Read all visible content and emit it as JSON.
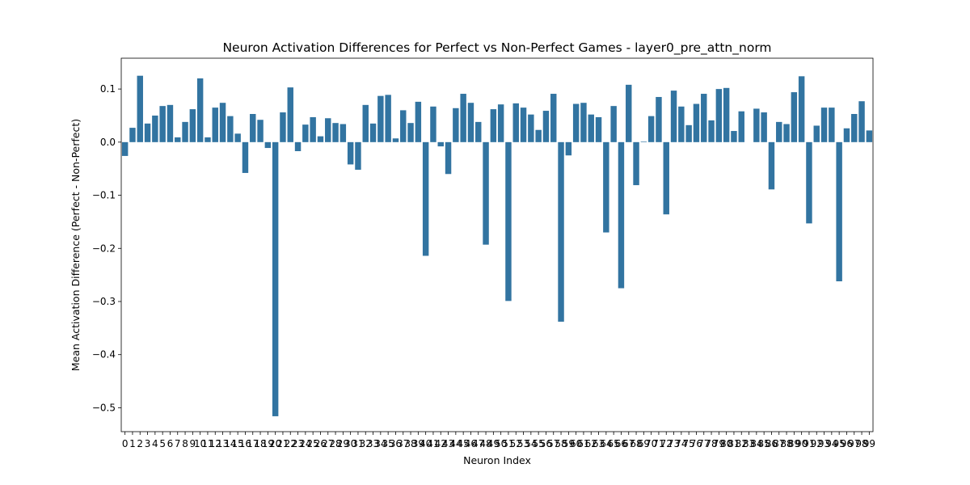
{
  "chart_data": {
    "type": "bar",
    "title": "Neuron Activation Differences for Perfect vs Non-Perfect Games - layer0_pre_attn_norm",
    "xlabel": "Neuron Index",
    "ylabel": "Mean Activation Difference (Perfect - Non-Perfect)",
    "ylim": [
      -0.545,
      0.158
    ],
    "yticks": [
      0.1,
      0.0,
      -0.1,
      -0.2,
      -0.3,
      -0.4,
      -0.5
    ],
    "ytick_labels": [
      "0.1",
      "0.0",
      "−0.1",
      "−0.2",
      "−0.3",
      "−0.4",
      "−0.5"
    ],
    "grid": false,
    "bar_color": "#3274a1",
    "categories": [
      "0",
      "1",
      "2",
      "3",
      "4",
      "5",
      "6",
      "7",
      "8",
      "9",
      "10",
      "11",
      "12",
      "13",
      "14",
      "15",
      "16",
      "17",
      "18",
      "19",
      "20",
      "21",
      "22",
      "23",
      "24",
      "25",
      "26",
      "27",
      "28",
      "29",
      "30",
      "31",
      "32",
      "33",
      "34",
      "35",
      "36",
      "37",
      "38",
      "39",
      "40",
      "41",
      "42",
      "43",
      "44",
      "45",
      "46",
      "47",
      "48",
      "49",
      "50",
      "51",
      "52",
      "53",
      "54",
      "55",
      "56",
      "57",
      "58",
      "59",
      "60",
      "61",
      "62",
      "63",
      "64",
      "65",
      "66",
      "67",
      "68",
      "69",
      "70",
      "71",
      "72",
      "73",
      "74",
      "75",
      "76",
      "77",
      "78",
      "79",
      "80",
      "81",
      "82",
      "83",
      "84",
      "85",
      "86",
      "87",
      "88",
      "89",
      "90",
      "91",
      "92",
      "93",
      "94",
      "95",
      "96",
      "97",
      "98",
      "99"
    ],
    "values": [
      -0.026,
      0.027,
      0.125,
      0.035,
      0.05,
      0.068,
      0.07,
      0.009,
      0.038,
      0.062,
      0.12,
      0.009,
      0.065,
      0.074,
      0.049,
      0.016,
      -0.058,
      0.053,
      0.042,
      -0.011,
      -0.516,
      0.056,
      0.103,
      -0.017,
      0.033,
      0.047,
      0.011,
      0.045,
      0.036,
      0.034,
      -0.042,
      -0.052,
      0.07,
      0.035,
      0.087,
      0.089,
      0.007,
      0.06,
      0.036,
      0.076,
      -0.214,
      0.067,
      -0.008,
      -0.06,
      0.064,
      0.091,
      0.074,
      0.038,
      -0.193,
      0.062,
      0.071,
      -0.299,
      0.073,
      0.065,
      0.052,
      0.023,
      0.059,
      0.091,
      -0.338,
      -0.025,
      0.072,
      0.074,
      0.052,
      0.047,
      -0.17,
      0.068,
      -0.275,
      0.108,
      -0.081,
      0.001,
      0.049,
      0.085,
      -0.136,
      0.097,
      0.067,
      0.032,
      0.072,
      0.091,
      0.041,
      0.1,
      0.102,
      0.021,
      0.058,
      0.0,
      0.063,
      0.056,
      -0.089,
      0.038,
      0.034,
      0.094,
      0.124,
      -0.153,
      0.031,
      0.065,
      0.065,
      -0.262,
      0.026,
      0.053,
      0.077,
      0.022
    ]
  }
}
